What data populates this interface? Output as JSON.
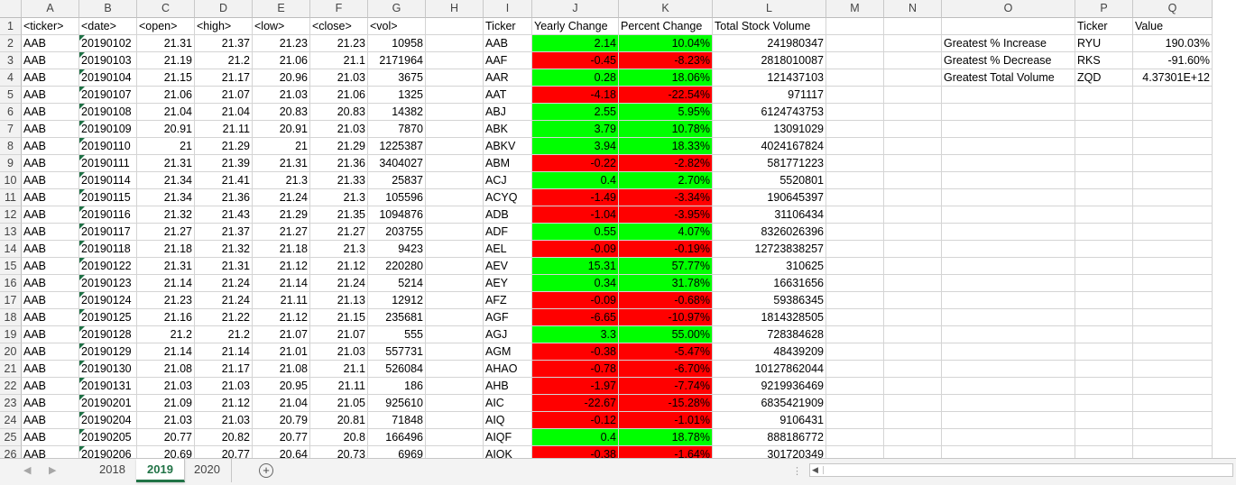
{
  "columns": [
    "A",
    "B",
    "C",
    "D",
    "E",
    "F",
    "G",
    "H",
    "I",
    "J",
    "K",
    "L",
    "M",
    "N",
    "O",
    "P",
    "Q"
  ],
  "headers": [
    "<ticker>",
    "<date>",
    "<open>",
    "<high>",
    "<low>",
    "<close>",
    "<vol>"
  ],
  "summary_headers": [
    "Ticker",
    "Yearly Change",
    "Percent Change",
    "Total Stock Volume"
  ],
  "stats_headers": [
    "Ticker",
    "Value"
  ],
  "raw_rows": [
    [
      "AAB",
      "20190102",
      "21.31",
      "21.37",
      "21.23",
      "21.23",
      "10958"
    ],
    [
      "AAB",
      "20190103",
      "21.19",
      "21.2",
      "21.06",
      "21.1",
      "2171964"
    ],
    [
      "AAB",
      "20190104",
      "21.15",
      "21.17",
      "20.96",
      "21.03",
      "3675"
    ],
    [
      "AAB",
      "20190107",
      "21.06",
      "21.07",
      "21.03",
      "21.06",
      "1325"
    ],
    [
      "AAB",
      "20190108",
      "21.04",
      "21.04",
      "20.83",
      "20.83",
      "14382"
    ],
    [
      "AAB",
      "20190109",
      "20.91",
      "21.11",
      "20.91",
      "21.03",
      "7870"
    ],
    [
      "AAB",
      "20190110",
      "21",
      "21.29",
      "21",
      "21.29",
      "1225387"
    ],
    [
      "AAB",
      "20190111",
      "21.31",
      "21.39",
      "21.31",
      "21.36",
      "3404027"
    ],
    [
      "AAB",
      "20190114",
      "21.34",
      "21.41",
      "21.3",
      "21.33",
      "25837"
    ],
    [
      "AAB",
      "20190115",
      "21.34",
      "21.36",
      "21.24",
      "21.3",
      "105596"
    ],
    [
      "AAB",
      "20190116",
      "21.32",
      "21.43",
      "21.29",
      "21.35",
      "1094876"
    ],
    [
      "AAB",
      "20190117",
      "21.27",
      "21.37",
      "21.27",
      "21.27",
      "203755"
    ],
    [
      "AAB",
      "20190118",
      "21.18",
      "21.32",
      "21.18",
      "21.3",
      "9423"
    ],
    [
      "AAB",
      "20190122",
      "21.31",
      "21.31",
      "21.12",
      "21.12",
      "220280"
    ],
    [
      "AAB",
      "20190123",
      "21.14",
      "21.24",
      "21.14",
      "21.24",
      "5214"
    ],
    [
      "AAB",
      "20190124",
      "21.23",
      "21.24",
      "21.11",
      "21.13",
      "12912"
    ],
    [
      "AAB",
      "20190125",
      "21.16",
      "21.22",
      "21.12",
      "21.15",
      "235681"
    ],
    [
      "AAB",
      "20190128",
      "21.2",
      "21.2",
      "21.07",
      "21.07",
      "555"
    ],
    [
      "AAB",
      "20190129",
      "21.14",
      "21.14",
      "21.01",
      "21.03",
      "557731"
    ],
    [
      "AAB",
      "20190130",
      "21.08",
      "21.17",
      "21.08",
      "21.1",
      "526084"
    ],
    [
      "AAB",
      "20190131",
      "21.03",
      "21.03",
      "20.95",
      "21.11",
      "186"
    ],
    [
      "AAB",
      "20190201",
      "21.09",
      "21.12",
      "21.04",
      "21.05",
      "925610"
    ],
    [
      "AAB",
      "20190204",
      "21.03",
      "21.03",
      "20.79",
      "20.81",
      "71848"
    ],
    [
      "AAB",
      "20190205",
      "20.77",
      "20.82",
      "20.77",
      "20.8",
      "166496"
    ],
    [
      "AAB",
      "20190206",
      "20.69",
      "20.77",
      "20.64",
      "20.73",
      "6969"
    ]
  ],
  "summary_rows": [
    [
      "AAB",
      "2.14",
      "10.04%",
      "241980347"
    ],
    [
      "AAF",
      "-0.45",
      "-8.23%",
      "2818010087"
    ],
    [
      "AAR",
      "0.28",
      "18.06%",
      "121437103"
    ],
    [
      "AAT",
      "-4.18",
      "-22.54%",
      "971117"
    ],
    [
      "ABJ",
      "2.55",
      "5.95%",
      "6124743753"
    ],
    [
      "ABK",
      "3.79",
      "10.78%",
      "13091029"
    ],
    [
      "ABKV",
      "3.94",
      "18.33%",
      "4024167824"
    ],
    [
      "ABM",
      "-0.22",
      "-2.82%",
      "581771223"
    ],
    [
      "ACJ",
      "0.4",
      "2.70%",
      "5520801"
    ],
    [
      "ACYQ",
      "-1.49",
      "-3.34%",
      "190645397"
    ],
    [
      "ADB",
      "-1.04",
      "-3.95%",
      "31106434"
    ],
    [
      "ADF",
      "0.55",
      "4.07%",
      "8326026396"
    ],
    [
      "AEL",
      "-0.09",
      "-0.19%",
      "12723838257"
    ],
    [
      "AEV",
      "15.31",
      "57.77%",
      "310625"
    ],
    [
      "AEY",
      "0.34",
      "31.78%",
      "16631656"
    ],
    [
      "AFZ",
      "-0.09",
      "-0.68%",
      "59386345"
    ],
    [
      "AGF",
      "-6.65",
      "-10.97%",
      "1814328505"
    ],
    [
      "AGJ",
      "3.3",
      "55.00%",
      "728384628"
    ],
    [
      "AGM",
      "-0.38",
      "-5.47%",
      "48439209"
    ],
    [
      "AHAO",
      "-0.78",
      "-6.70%",
      "10127862044"
    ],
    [
      "AHB",
      "-1.97",
      "-7.74%",
      "9219936469"
    ],
    [
      "AIC",
      "-22.67",
      "-15.28%",
      "6835421909"
    ],
    [
      "AIQ",
      "-0.12",
      "-1.01%",
      "9106431"
    ],
    [
      "AIQF",
      "0.4",
      "18.78%",
      "888186772"
    ],
    [
      "AIQK",
      "-0.38",
      "-1.64%",
      "301720349"
    ]
  ],
  "stats_rows": [
    [
      "Greatest % Increase",
      "RYU",
      "190.03%"
    ],
    [
      "Greatest % Decrease",
      "RKS",
      "-91.60%"
    ],
    [
      "Greatest Total Volume",
      "ZQD",
      "4.37301E+12"
    ]
  ],
  "sheets": [
    "2018",
    "2019",
    "2020"
  ],
  "active_sheet": "2019",
  "colors": {
    "positive": "#00ff00",
    "negative": "#ff0000",
    "accent": "#217346"
  },
  "icons": {
    "add_sheet": "plus-circle-icon",
    "scroll_left": "triangle-left-icon"
  }
}
